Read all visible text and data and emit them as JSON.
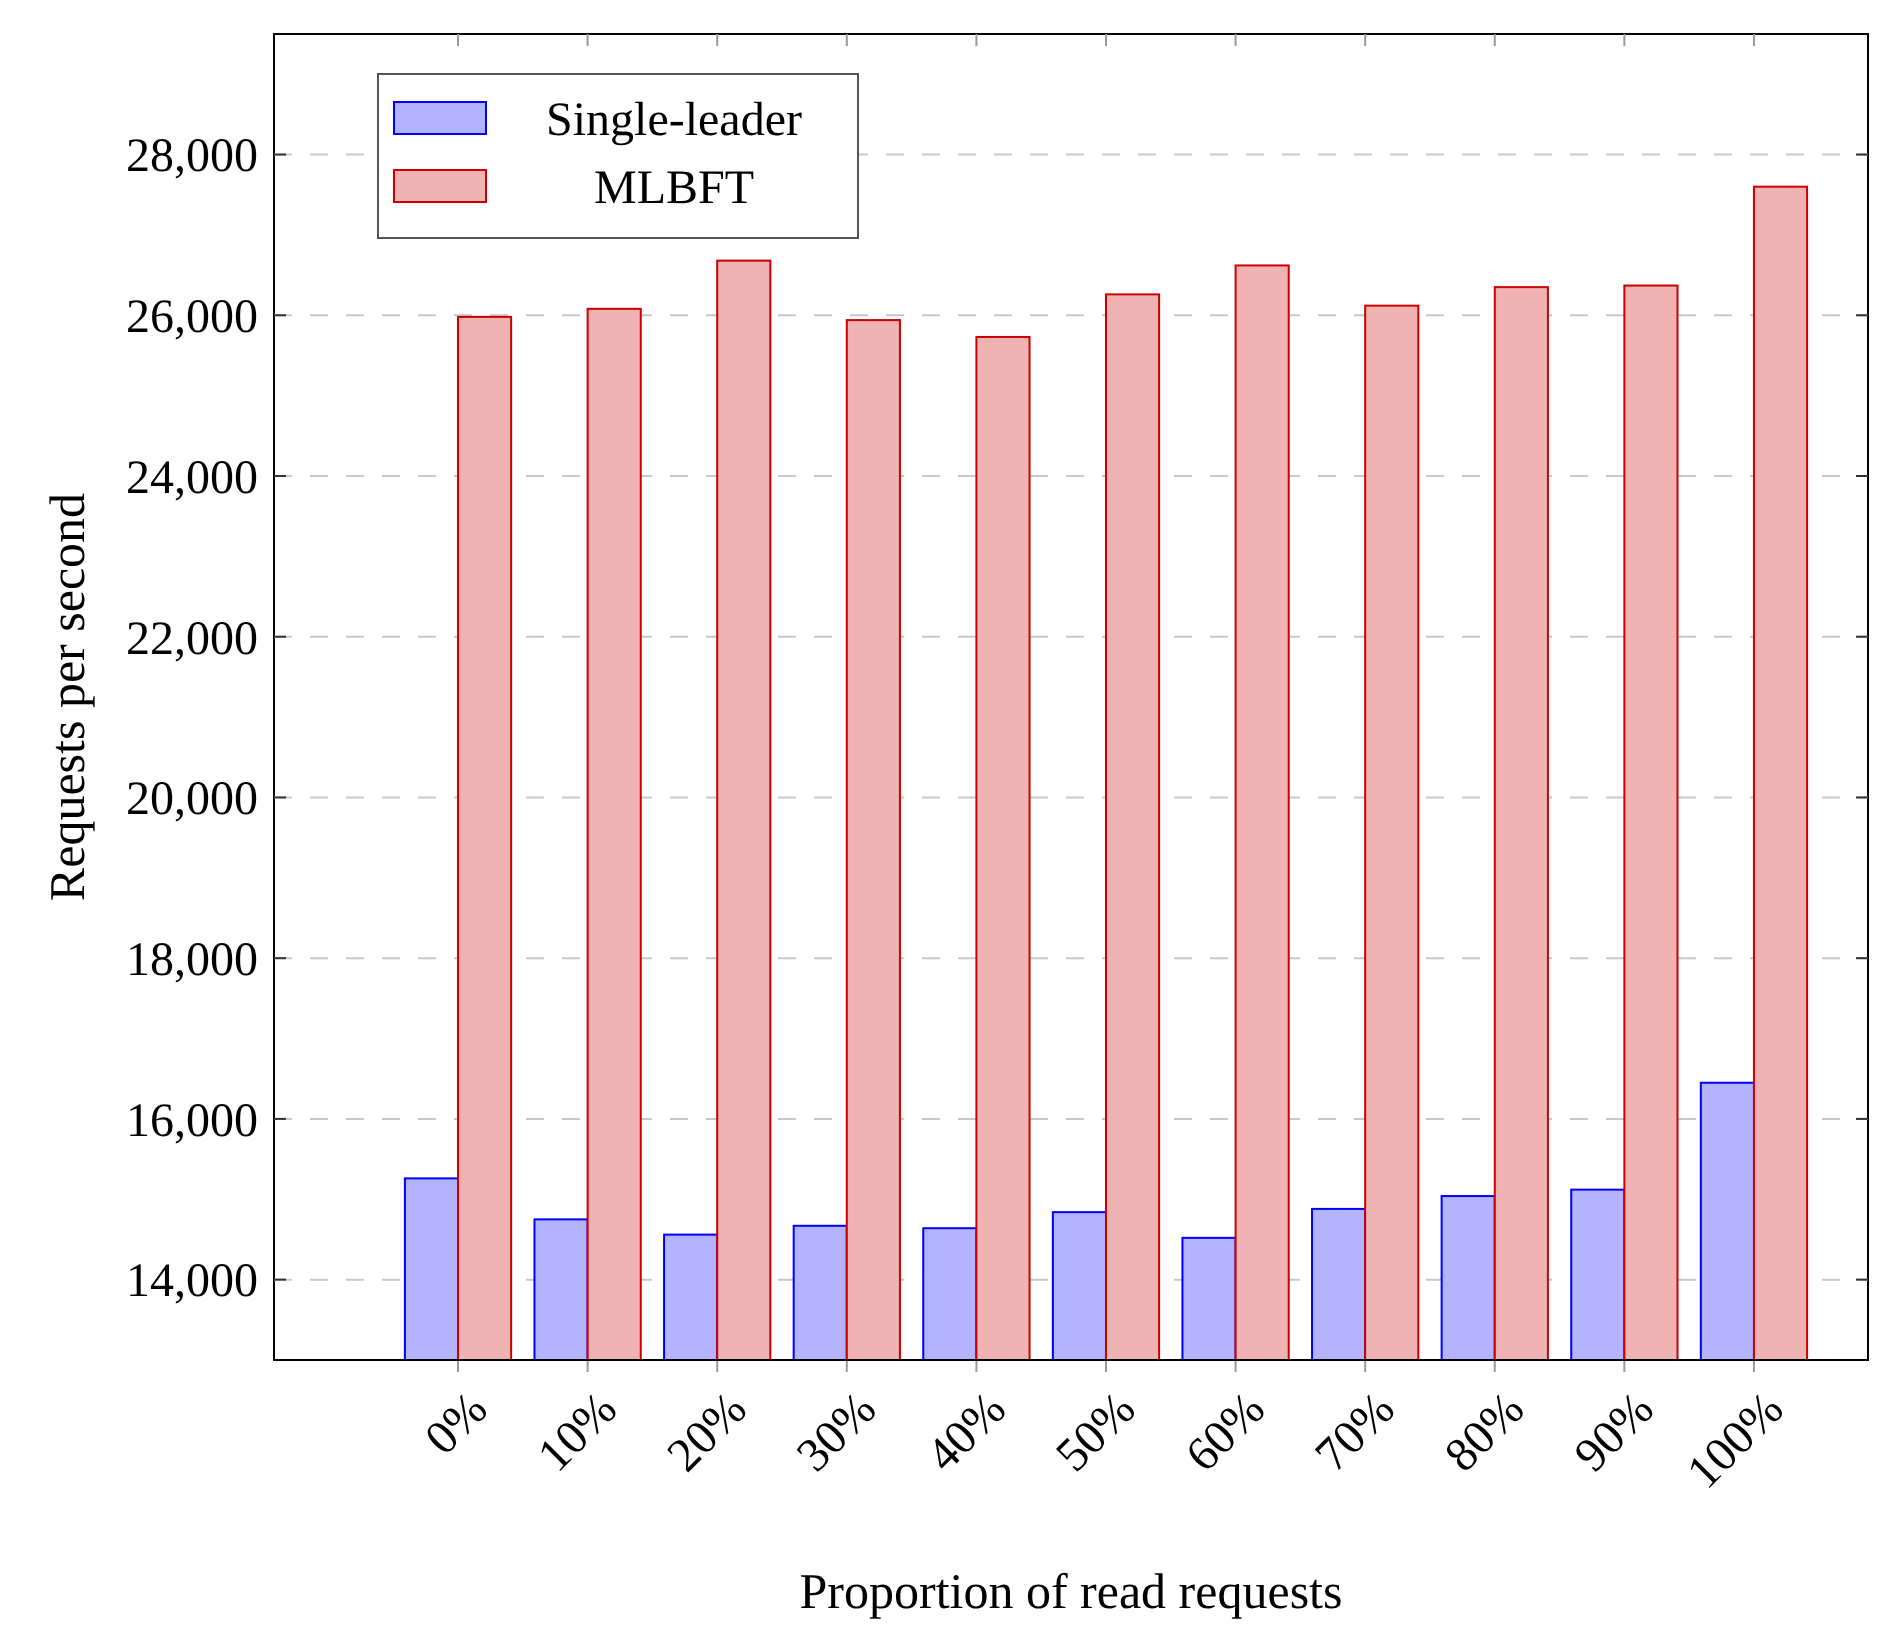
{
  "chart_data": {
    "type": "bar",
    "xlabel": "Proportion of read requests",
    "ylabel": "Requests per second",
    "categories": [
      "0%",
      "10%",
      "20%",
      "30%",
      "40%",
      "50%",
      "60%",
      "70%",
      "80%",
      "90%",
      "100%"
    ],
    "series": [
      {
        "name": "Single-leader",
        "color": "#0000ff",
        "values": [
          15260,
          14750,
          14560,
          14670,
          14640,
          14840,
          14520,
          14880,
          15040,
          15120,
          16450
        ]
      },
      {
        "name": "MLBFT",
        "color": "#cc0000",
        "values": [
          25980,
          26080,
          26680,
          25940,
          25730,
          26260,
          26620,
          26120,
          26350,
          26370,
          27600
        ]
      }
    ],
    "ylim": [
      13000,
      29500
    ],
    "yticks": [
      {
        "value": 14000,
        "label": "14,000"
      },
      {
        "value": 16000,
        "label": "16,000"
      },
      {
        "value": 18000,
        "label": "18,000"
      },
      {
        "value": 20000,
        "label": "20,000"
      },
      {
        "value": 22000,
        "label": "22,000"
      },
      {
        "value": 24000,
        "label": "24,000"
      },
      {
        "value": 26000,
        "label": "26,000"
      },
      {
        "value": 28000,
        "label": "28,000"
      }
    ],
    "grid": "y",
    "legend": "top left"
  }
}
